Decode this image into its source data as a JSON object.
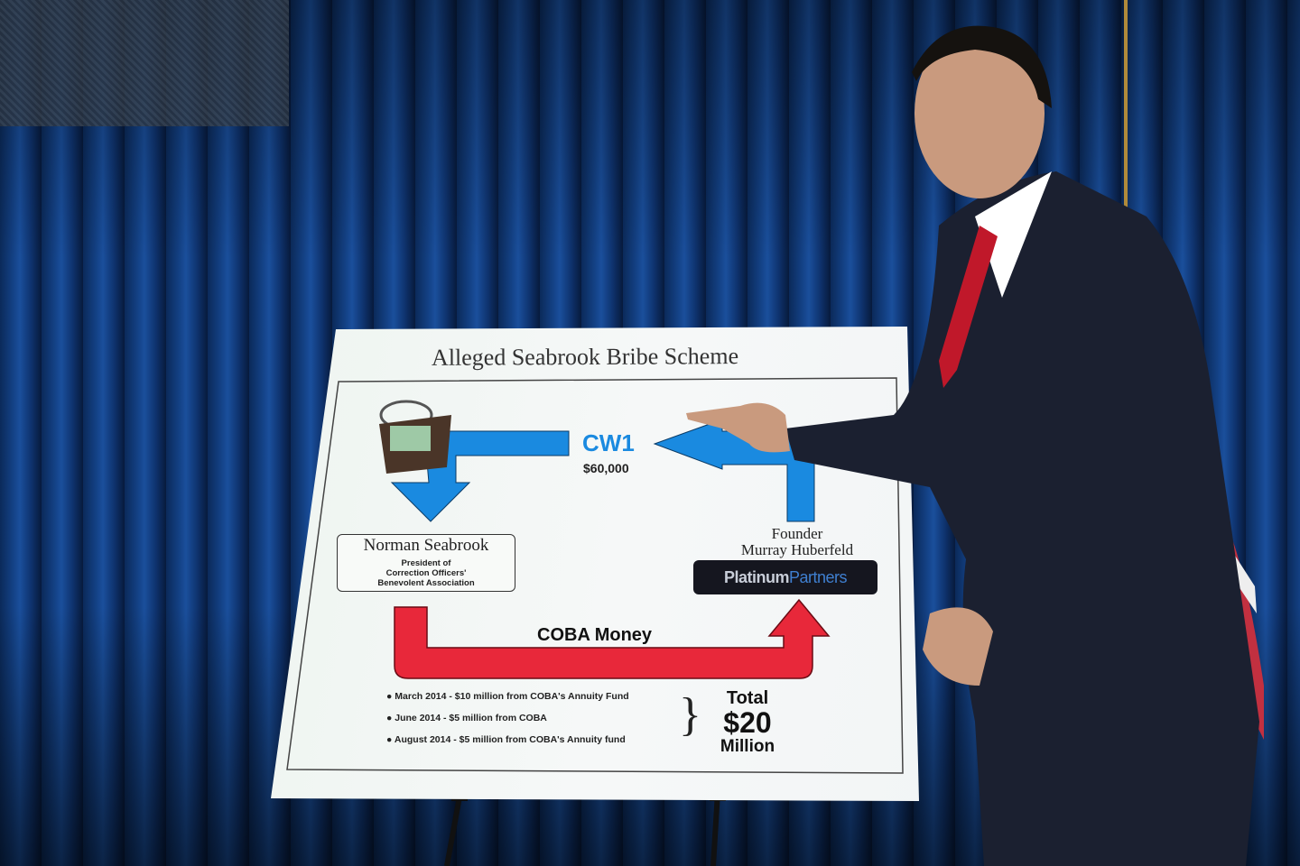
{
  "scene": "press conference",
  "poster": {
    "title": "Alleged Seabrook Bribe Scheme",
    "cw1": {
      "label": "CW1",
      "amount": "$60,000"
    },
    "seabrook": {
      "name": "Norman Seabrook",
      "role_lines": [
        "President of",
        "Correction Officers'",
        "Benevolent Association"
      ]
    },
    "founder": {
      "line1": "Founder",
      "line2": "Murray Huberfeld"
    },
    "logo": {
      "part1": "Platinum",
      "part2": "Partners"
    },
    "coba_label": "COBA Money",
    "transfers": [
      "March 2014 - $10 million from COBA's Annuity Fund",
      "June 2014 - $5 million from COBA",
      "August 2014 - $5 million from COBA's Annuity fund"
    ],
    "total": {
      "line1": "Total",
      "line2": "$20",
      "line3": "Million"
    }
  },
  "colors": {
    "curtain": "#134083",
    "blue_arrow": "#1a8ae0",
    "red_arrow": "#e8283a",
    "suit": "#1b2030",
    "tie": "#c0182a"
  }
}
